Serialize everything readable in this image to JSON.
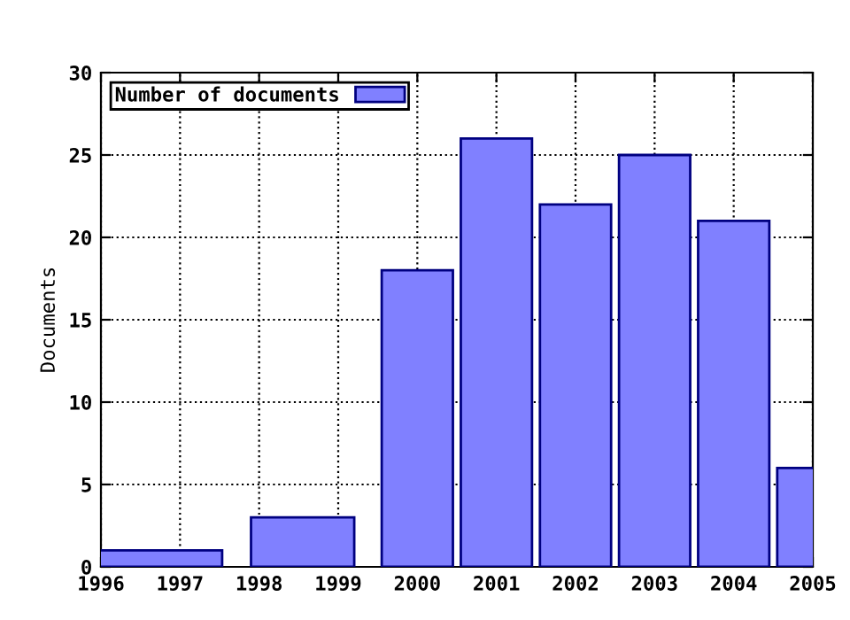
{
  "chart_data": {
    "type": "bar",
    "ylabel": "Documents",
    "x": [
      1996.7,
      1998.55,
      2000,
      2001,
      2002,
      2003,
      2004,
      2005
    ],
    "series": [
      {
        "name": "Number of documents",
        "color": "#8080ff",
        "values": [
          1,
          3,
          18,
          26,
          22,
          25,
          21,
          6
        ]
      }
    ],
    "xlim": [
      1996,
      2005
    ],
    "xticks": [
      1996,
      1997,
      1998,
      1999,
      2000,
      2001,
      2002,
      2003,
      2004,
      2005
    ],
    "ylim": [
      0,
      30
    ],
    "yticks": [
      0,
      5,
      10,
      15,
      20,
      25,
      30
    ],
    "grid": true,
    "legend": "top left"
  }
}
